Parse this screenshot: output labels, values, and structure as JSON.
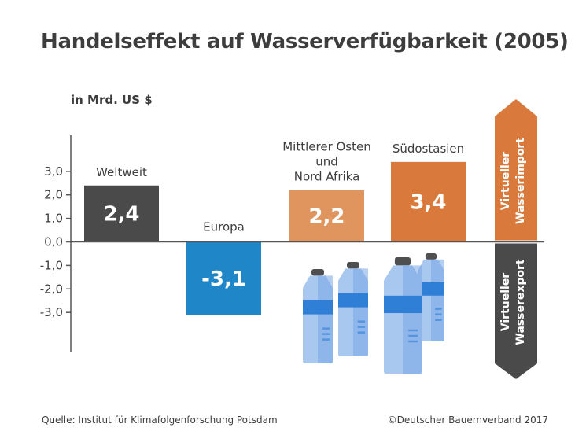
{
  "title": "Handelseffekt auf Wasserverfügbarkeit (2005)",
  "unit_label": "in Mrd. US $",
  "source": "Quelle: Institut für Klimafolgenforschung Potsdam",
  "copyright": "©Deutscher Bauernverband 2017",
  "arrow_import": [
    "Virtueller",
    "Wasserimport"
  ],
  "arrow_export": [
    "Virtueller",
    "Wasserexport"
  ],
  "colors": {
    "weltweit": "#4a4a4a",
    "europa": "#1f86c8",
    "mittlerer_osten": "#e0955e",
    "suedostasien": "#d97a3c",
    "import_arrow": "#d97a3c",
    "export_arrow": "#4a4a4a",
    "axis": "#555555",
    "bottle_light": "#a8c8ef",
    "bottle_mid": "#7aa8e6",
    "bottle_band": "#2f7fd6",
    "bottle_cap": "#4f4f4f"
  },
  "chart_data": {
    "type": "bar",
    "categories": [
      [
        "Weltweit"
      ],
      [
        "Europa"
      ],
      [
        "Mittlerer Osten",
        "und",
        "Nord Afrika"
      ],
      [
        "Südostasien"
      ]
    ],
    "values": [
      2.4,
      -3.1,
      2.2,
      3.4
    ],
    "value_labels": [
      "2,4",
      "-3,1",
      "2,2",
      "3,4"
    ],
    "tick_values": [
      3,
      2,
      1,
      0,
      -1,
      -2,
      -3
    ],
    "tick_labels": [
      "3,0",
      "2,0",
      "1,0",
      "0,0",
      "-1,0",
      "-2,0",
      "-3,0"
    ],
    "ylim": [
      -4.7,
      4.6
    ],
    "title": "Handelseffekt auf Wasserverfügbarkeit (2005)",
    "ylabel": "in Mrd. US $",
    "xlabel": ""
  }
}
